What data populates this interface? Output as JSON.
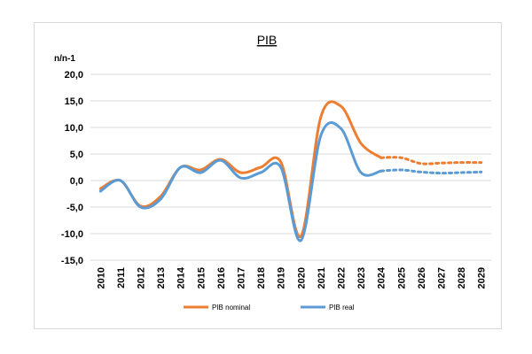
{
  "chart_data": {
    "type": "line",
    "title": "PIB",
    "ylabel": "n/n-1",
    "xlabel": "",
    "ylim": [
      -15,
      20
    ],
    "y_ticks": [
      "-15,0",
      "-10,0",
      "-5,0",
      "0,0",
      "5,0",
      "10,0",
      "15,0",
      "20,0"
    ],
    "categories": [
      "2010",
      "2011",
      "2012",
      "2013",
      "2014",
      "2015",
      "2016",
      "2017",
      "2018",
      "2019",
      "2020",
      "2021",
      "2022",
      "2023",
      "2024",
      "2025",
      "2026",
      "2027",
      "2028",
      "2029"
    ],
    "forecast_from": "2024",
    "grid": true,
    "legend_position": "bottom",
    "series": [
      {
        "name": "PIB nominal",
        "color": "#ED7D31",
        "values": [
          -1.5,
          0.0,
          -4.8,
          -3.0,
          2.5,
          2.0,
          4.0,
          1.5,
          2.5,
          3.5,
          -10.5,
          12.0,
          14.0,
          7.0,
          4.3,
          4.3,
          3.2,
          3.3,
          3.4,
          3.4
        ]
      },
      {
        "name": "PIB real",
        "color": "#5B9BD5",
        "values": [
          -2.0,
          0.0,
          -5.0,
          -3.5,
          2.5,
          1.5,
          3.8,
          0.5,
          1.5,
          2.5,
          -11.3,
          8.5,
          9.8,
          1.5,
          1.8,
          2.0,
          1.6,
          1.4,
          1.5,
          1.6
        ]
      }
    ]
  }
}
